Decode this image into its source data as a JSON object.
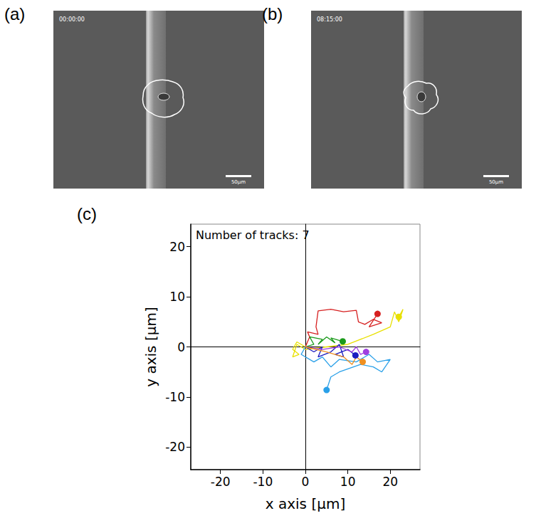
{
  "images": [
    {
      "label": "(a)",
      "time": "00:00:00",
      "scale_bar": "50µm"
    },
    {
      "label": "(b)",
      "time": "08:15:00",
      "scale_bar": "50µm"
    }
  ],
  "chart_data": {
    "type": "line",
    "panel_label": "(c)",
    "annotation": "Number of tracks: 7",
    "x_label": "x axis [µm]",
    "y_label": "y axis [µm]",
    "xlim": [
      -27,
      27
    ],
    "ylim": [
      -24.5,
      24.5
    ],
    "xticks": [
      -20,
      -10,
      0,
      10,
      20
    ],
    "yticks": [
      -20,
      -10,
      0,
      10,
      20
    ],
    "grid": false,
    "marker": "circle",
    "series": [
      {
        "color": "#d62020",
        "points": [
          [
            0,
            0
          ],
          [
            1,
            2
          ],
          [
            0.5,
            3
          ],
          [
            3,
            2.5
          ],
          [
            2.5,
            4
          ],
          [
            3,
            7.2
          ],
          [
            6,
            7.5
          ],
          [
            9,
            7
          ],
          [
            12,
            7.3
          ],
          [
            12.5,
            5
          ],
          [
            14,
            4.5
          ],
          [
            16,
            5.5
          ],
          [
            18,
            4.8
          ],
          [
            15,
            4
          ],
          [
            17,
            6.6
          ]
        ]
      },
      {
        "color": "#e8e000",
        "points": [
          [
            0,
            0
          ],
          [
            -2,
            1
          ],
          [
            -3,
            -0.5
          ],
          [
            -1.5,
            -1.5
          ],
          [
            -3,
            -2
          ],
          [
            -2,
            0.5
          ],
          [
            0,
            -0.5
          ],
          [
            5,
            0
          ],
          [
            10,
            0.5
          ],
          [
            16,
            2.5
          ],
          [
            20,
            4
          ],
          [
            21,
            7
          ],
          [
            22,
            5
          ],
          [
            23,
            7.5
          ],
          [
            22,
            6
          ]
        ]
      },
      {
        "color": "#1a9a1a",
        "points": [
          [
            0,
            0
          ],
          [
            2,
            0.5
          ],
          [
            1,
            2
          ],
          [
            4,
            1.5
          ],
          [
            3,
            0.5
          ],
          [
            5,
            2
          ],
          [
            7,
            0.8
          ],
          [
            6,
            1.8
          ],
          [
            8.8,
            1.1
          ]
        ]
      },
      {
        "color": "#1c1cc0",
        "points": [
          [
            0,
            0
          ],
          [
            2,
            -1
          ],
          [
            4,
            0
          ],
          [
            3,
            -2
          ],
          [
            6,
            -1
          ],
          [
            8,
            0.5
          ],
          [
            9,
            -2
          ],
          [
            7,
            -1.5
          ],
          [
            10,
            -0.5
          ],
          [
            11.8,
            -1.7
          ]
        ]
      },
      {
        "color": "#2aa0e8",
        "points": [
          [
            0,
            0
          ],
          [
            -1,
            -1.5
          ],
          [
            2,
            -3
          ],
          [
            4,
            -2
          ],
          [
            6,
            -4
          ],
          [
            8,
            -2.5
          ],
          [
            12,
            -3
          ],
          [
            15,
            -1.5
          ],
          [
            17,
            -3
          ],
          [
            20,
            -2.5
          ],
          [
            18,
            -5
          ],
          [
            16,
            -4
          ],
          [
            13,
            -3.5
          ],
          [
            8,
            -5
          ],
          [
            6,
            -6
          ],
          [
            5,
            -8.6
          ]
        ]
      },
      {
        "color": "#a040e0",
        "points": [
          [
            0,
            0
          ],
          [
            4,
            -0.5
          ],
          [
            8,
            0
          ],
          [
            11,
            -1
          ],
          [
            12,
            0
          ],
          [
            13,
            -1.5
          ],
          [
            14.3,
            -1
          ]
        ]
      },
      {
        "color": "#f09020",
        "points": [
          [
            0,
            0
          ],
          [
            5,
            -1
          ],
          [
            9,
            -2
          ],
          [
            11,
            -3.5
          ],
          [
            12,
            -2
          ],
          [
            13.5,
            -3
          ]
        ]
      }
    ]
  }
}
